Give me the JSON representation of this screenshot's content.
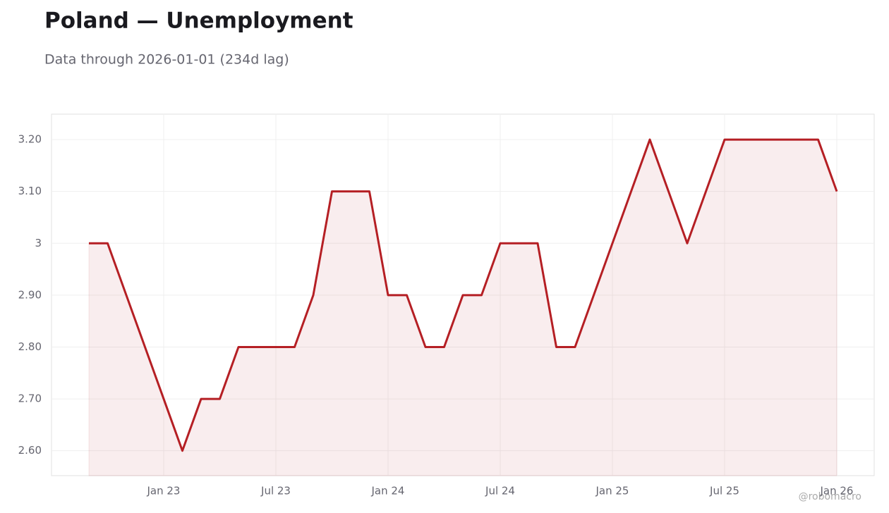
{
  "chart_data": {
    "type": "line",
    "title": "Poland — Unemployment",
    "subtitle": "Data through 2026-01-01 (234d lag)",
    "watermark": "@robomacro",
    "x": [
      "2022-09",
      "2022-10",
      "2022-11",
      "2022-12",
      "2023-01",
      "2023-02",
      "2023-03",
      "2023-04",
      "2023-05",
      "2023-06",
      "2023-07",
      "2023-08",
      "2023-09",
      "2023-10",
      "2023-11",
      "2023-12",
      "2024-01",
      "2024-02",
      "2024-03",
      "2024-04",
      "2024-05",
      "2024-06",
      "2024-07",
      "2024-08",
      "2024-09",
      "2024-10",
      "2024-11",
      "2024-12",
      "2025-01",
      "2025-02",
      "2025-03",
      "2025-04",
      "2025-05",
      "2025-06",
      "2025-07",
      "2025-08",
      "2025-09",
      "2025-10",
      "2025-11",
      "2025-12",
      "2026-01"
    ],
    "series": [
      {
        "name": "Unemployment",
        "color": "#b51f24",
        "values": [
          3.0,
          3.0,
          2.9,
          2.8,
          2.7,
          2.6,
          2.7,
          2.7,
          2.8,
          2.8,
          2.8,
          2.8,
          2.9,
          3.1,
          3.1,
          3.1,
          2.9,
          2.9,
          2.8,
          2.8,
          2.9,
          2.9,
          3.0,
          3.0,
          3.0,
          2.8,
          2.8,
          2.9,
          3.0,
          3.1,
          3.2,
          3.1,
          3.0,
          3.1,
          3.2,
          3.2,
          3.2,
          3.2,
          3.2,
          3.2,
          3.1
        ]
      }
    ],
    "xlim": [
      "2022-07",
      "2026-03"
    ],
    "xticks": [
      {
        "value": "2023-01",
        "label": "Jan 23"
      },
      {
        "value": "2023-07",
        "label": "Jul 23"
      },
      {
        "value": "2024-01",
        "label": "Jan 24"
      },
      {
        "value": "2024-07",
        "label": "Jul 24"
      },
      {
        "value": "2025-01",
        "label": "Jan 25"
      },
      {
        "value": "2025-07",
        "label": "Jul 25"
      },
      {
        "value": "2026-01",
        "label": "Jan 26"
      }
    ],
    "ylim": [
      2.552,
      3.249
    ],
    "yticks": [
      {
        "value": 2.6,
        "label": "2.60"
      },
      {
        "value": 2.7,
        "label": "2.70"
      },
      {
        "value": 2.8,
        "label": "2.80"
      },
      {
        "value": 2.9,
        "label": "2.90"
      },
      3,
      {
        "value": 3.1,
        "label": "3.10"
      },
      {
        "value": 3.2,
        "label": "3.20"
      }
    ],
    "grid": true
  }
}
